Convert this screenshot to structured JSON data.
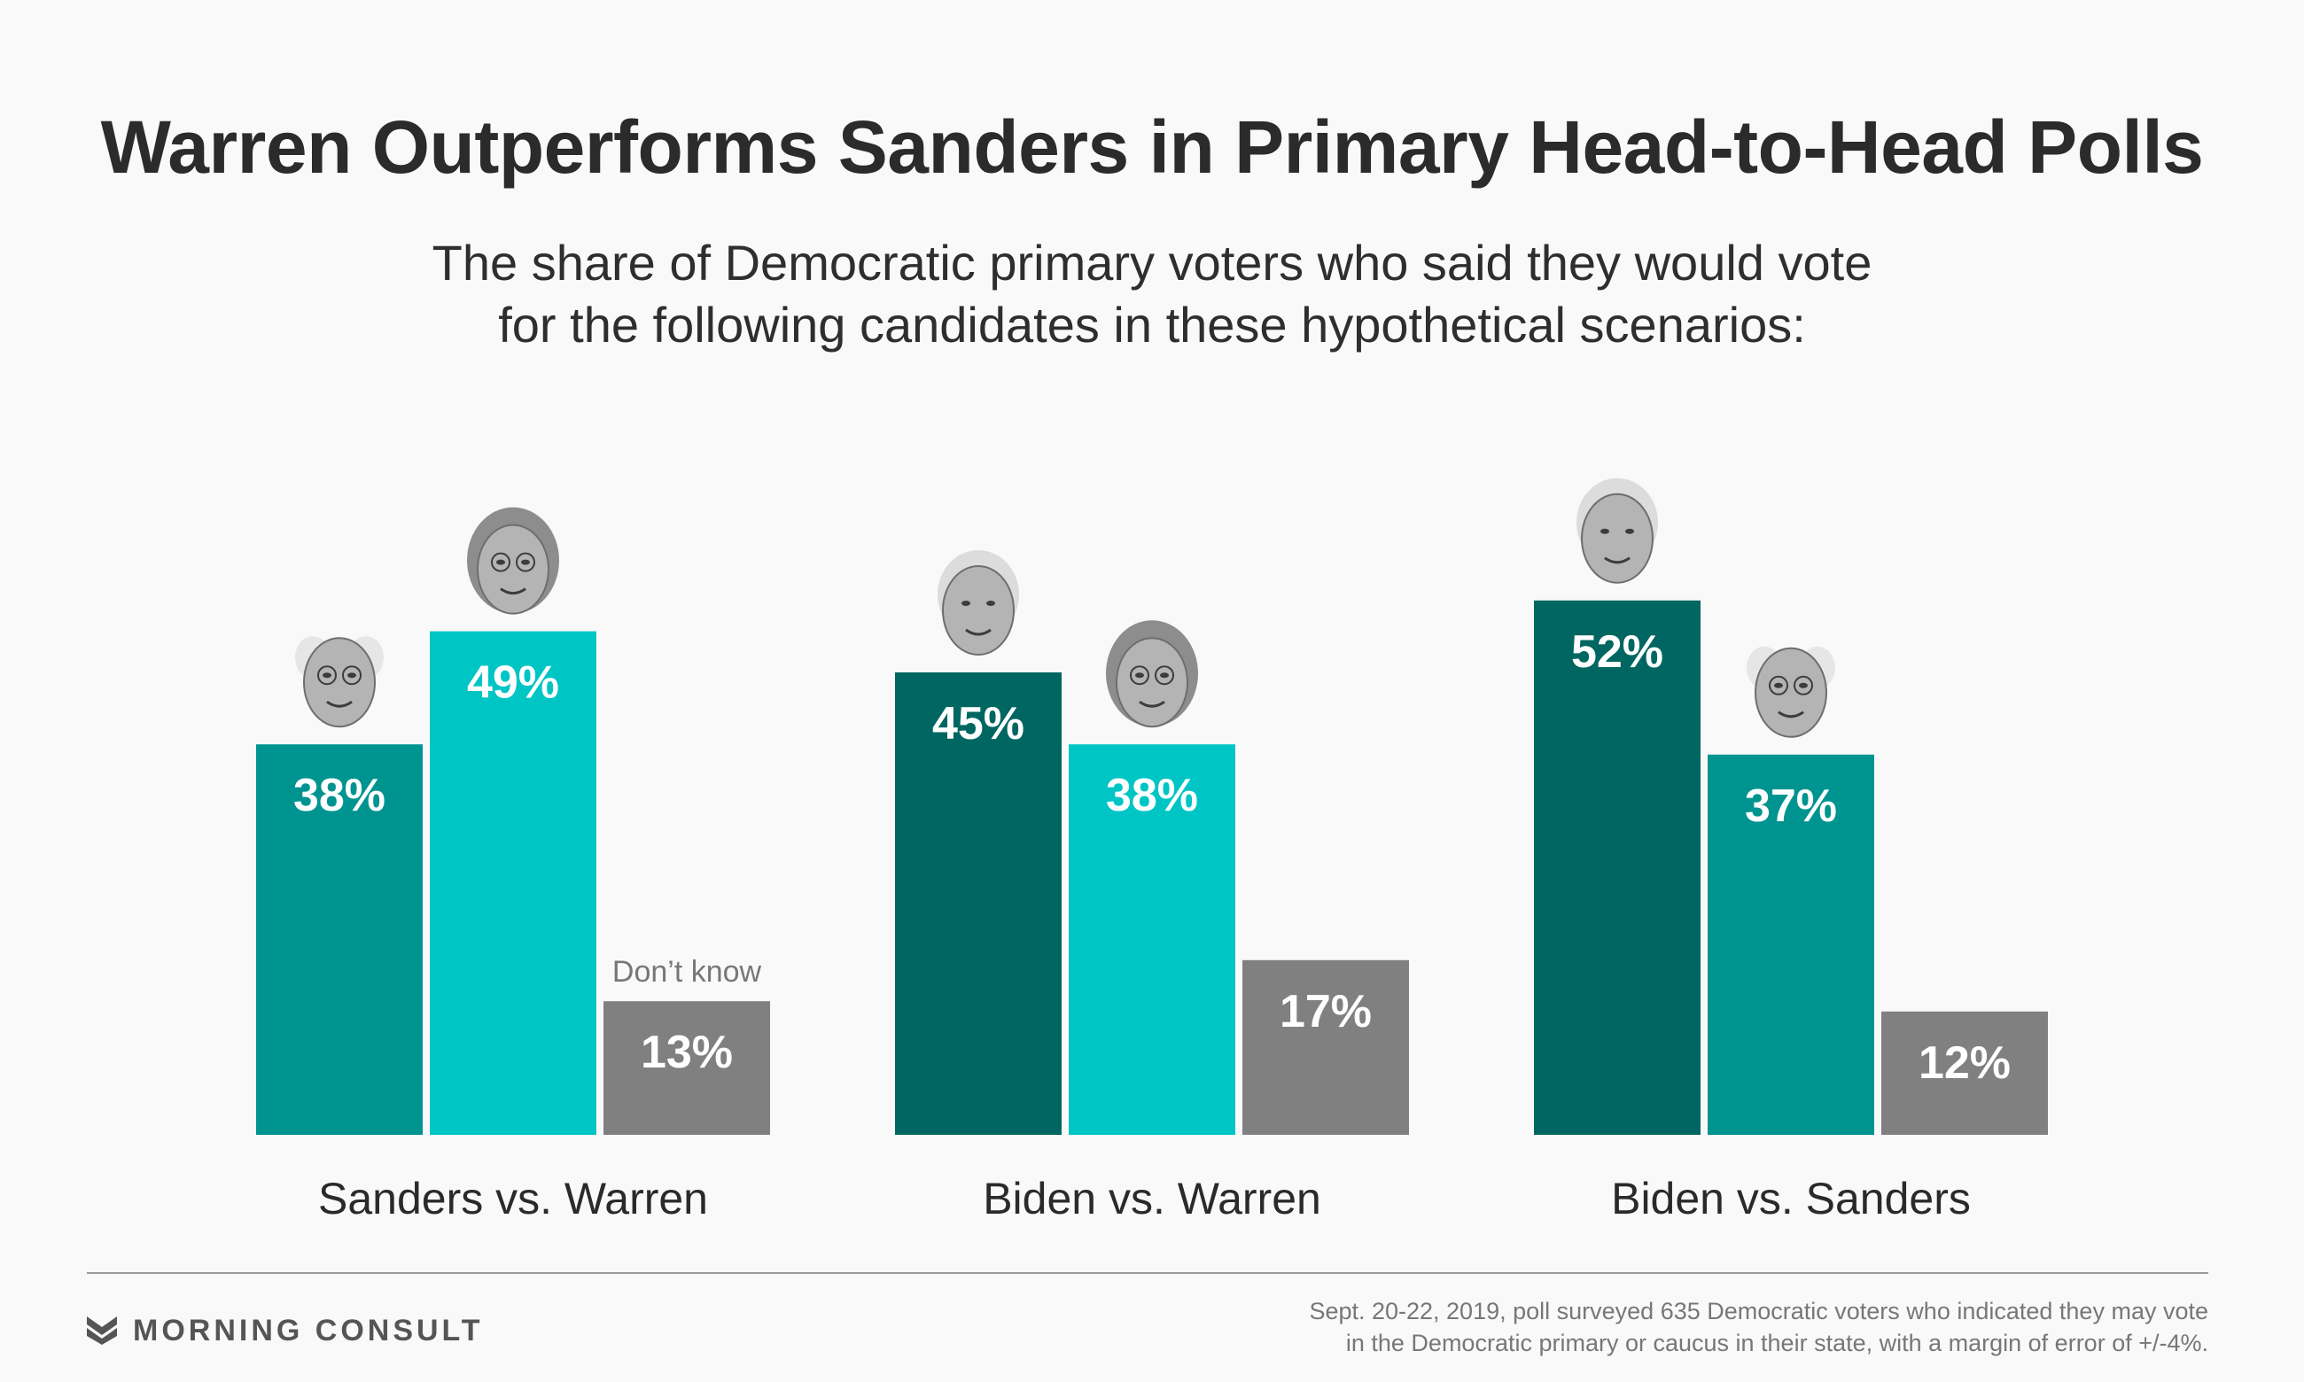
{
  "title": "Warren Outperforms Sanders in Primary Head-to-Head Polls",
  "subtitle_lines": [
    "The share of Democratic primary voters who said they would vote",
    "for the following candidates in these hypothetical scenarios:"
  ],
  "colors": {
    "sanders": "#009490",
    "warren": "#00c5c5",
    "biden": "#006661",
    "dont_know": "#808080"
  },
  "chart_data": {
    "type": "bar",
    "categories": [
      "Sanders vs. Warren",
      "Biden vs. Warren",
      "Biden vs. Sanders"
    ],
    "ylim": [
      0,
      60
    ],
    "groups": [
      {
        "label": "Sanders vs. Warren",
        "bars": [
          {
            "candidate": "Sanders",
            "value": 38,
            "label": "38%",
            "color": "#009490",
            "face": "Sanders"
          },
          {
            "candidate": "Warren",
            "value": 49,
            "label": "49%",
            "color": "#00c5c5",
            "face": "Warren"
          },
          {
            "candidate": "Don't know",
            "value": 13,
            "label": "13%",
            "color": "#808080",
            "note": "Don’t know"
          }
        ]
      },
      {
        "label": "Biden vs. Warren",
        "bars": [
          {
            "candidate": "Biden",
            "value": 45,
            "label": "45%",
            "color": "#006661",
            "face": "Biden"
          },
          {
            "candidate": "Warren",
            "value": 38,
            "label": "38%",
            "color": "#00c5c5",
            "face": "Warren"
          },
          {
            "candidate": "Don't know",
            "value": 17,
            "label": "17%",
            "color": "#808080"
          }
        ]
      },
      {
        "label": "Biden vs. Sanders",
        "bars": [
          {
            "candidate": "Biden",
            "value": 52,
            "label": "52%",
            "color": "#006661",
            "face": "Biden"
          },
          {
            "candidate": "Sanders",
            "value": 37,
            "label": "37%",
            "color": "#009490",
            "face": "Sanders"
          },
          {
            "candidate": "Don't know",
            "value": 12,
            "label": "12%",
            "color": "#808080"
          }
        ]
      }
    ]
  },
  "footer": {
    "brand": "MORNING CONSULT",
    "note_lines": [
      "Sept. 20-22, 2019, poll surveyed 635 Democratic voters who indicated they may vote",
      "in the Democratic primary or caucus in their state, with a margin of error of +/-4%."
    ]
  }
}
